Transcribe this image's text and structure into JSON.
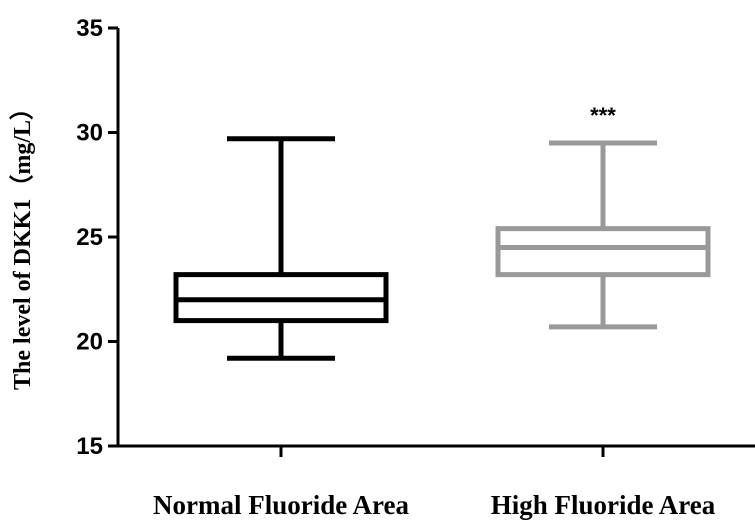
{
  "chart_data": {
    "type": "box",
    "ylabel": "The level of  DKK1（mg/L）",
    "xlabel": "",
    "ylim": [
      15,
      35
    ],
    "yticks": [
      15,
      20,
      25,
      30,
      35
    ],
    "grid": false,
    "categories": [
      "Normal Fluoride Area",
      "High Fluoride Area"
    ],
    "boxes": [
      {
        "category": "Normal Fluoride Area",
        "min": 19.2,
        "q1": 21.0,
        "median": 22.0,
        "q3": 23.2,
        "max": 29.7,
        "color": "#000000",
        "annotation": ""
      },
      {
        "category": "High Fluoride Area",
        "min": 20.7,
        "q1": 23.2,
        "median": 24.5,
        "q3": 25.4,
        "max": 29.5,
        "color": "#999999",
        "annotation": "***"
      }
    ]
  }
}
